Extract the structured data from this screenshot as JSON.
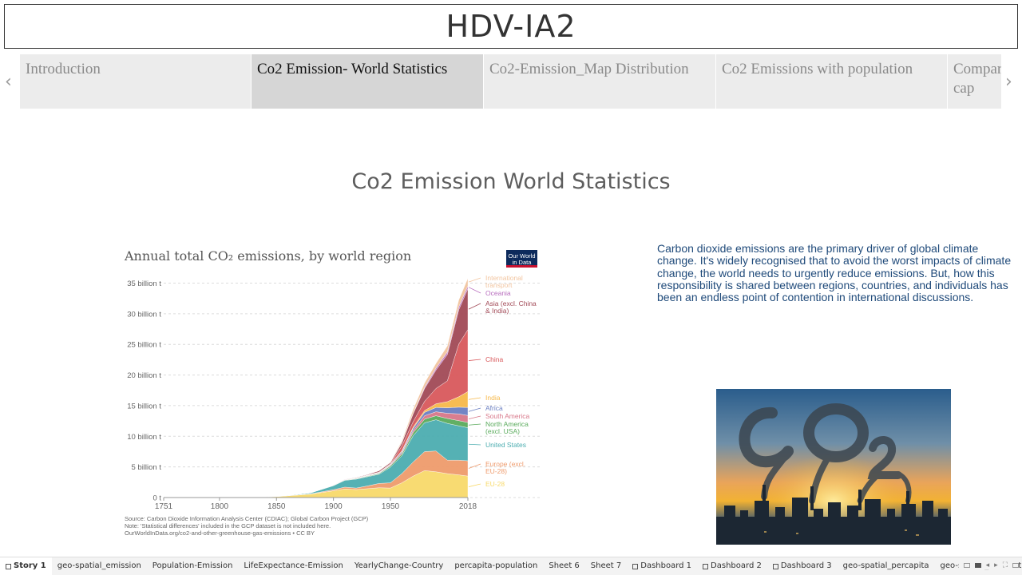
{
  "title": "HDV-IA2",
  "story_points": [
    {
      "label": "Introduction",
      "active": false
    },
    {
      "label": "Co2 Emission- World Statistics",
      "active": true
    },
    {
      "label": "Co2-Emission_Map Distribution",
      "active": false
    },
    {
      "label": "Co2 Emissions with population",
      "active": false
    },
    {
      "label": "Compar per-cap",
      "active": false
    }
  ],
  "nav": {
    "prev_icon": "chevron-left-icon",
    "next_icon": "chevron-right-icon"
  },
  "page_title": "Co2 Emission World Statistics",
  "chart_data": {
    "type": "area",
    "title": "Annual total CO₂ emissions, by world region",
    "logo_text": [
      "Our World",
      "in Data"
    ],
    "x_ticks": [
      "1751",
      "1800",
      "1850",
      "1900",
      "1950",
      "2018"
    ],
    "y_ticks": [
      "0 t",
      "5 billion t",
      "10 billion t",
      "15 billion t",
      "20 billion t",
      "25 billion t",
      "30 billion t",
      "35 billion t"
    ],
    "ylim": [
      0,
      36.5
    ],
    "xlim": [
      1751,
      2018
    ],
    "grid": true,
    "x": [
      1751,
      1800,
      1850,
      1880,
      1900,
      1910,
      1920,
      1930,
      1940,
      1950,
      1960,
      1970,
      1980,
      1990,
      2000,
      2010,
      2018
    ],
    "series": [
      {
        "name": "EU-28",
        "color": "#f8da6b",
        "values": [
          0.01,
          0.03,
          0.15,
          0.55,
          1.1,
          1.4,
          1.3,
          1.45,
          1.6,
          1.55,
          2.4,
          3.5,
          4.4,
          4.2,
          3.9,
          3.7,
          3.5
        ]
      },
      {
        "name": "Europe (excl. EU-28)",
        "color": "#ef9b6c",
        "values": [
          0,
          0,
          0.01,
          0.06,
          0.18,
          0.3,
          0.25,
          0.45,
          0.7,
          0.85,
          1.5,
          2.3,
          3.1,
          3.4,
          2.2,
          2.4,
          2.5
        ]
      },
      {
        "name": "United States",
        "color": "#4cadb0",
        "values": [
          0,
          0,
          0.01,
          0.15,
          0.65,
          1.1,
          1.45,
          1.5,
          1.5,
          2.55,
          2.9,
          4.3,
          4.7,
          5.1,
          6.0,
          5.6,
          5.4
        ]
      },
      {
        "name": "North America (excl. USA)",
        "color": "#5aab5c",
        "values": [
          0,
          0,
          0,
          0.01,
          0.04,
          0.07,
          0.08,
          0.1,
          0.12,
          0.2,
          0.3,
          0.5,
          0.6,
          0.65,
          0.8,
          0.85,
          0.85
        ]
      },
      {
        "name": "South America",
        "color": "#d8788a",
        "values": [
          0,
          0,
          0,
          0,
          0.01,
          0.02,
          0.03,
          0.05,
          0.06,
          0.1,
          0.2,
          0.35,
          0.55,
          0.65,
          0.85,
          1.1,
          1.15
        ]
      },
      {
        "name": "Africa",
        "color": "#6b7fc2",
        "values": [
          0,
          0,
          0,
          0,
          0.01,
          0.02,
          0.04,
          0.05,
          0.07,
          0.1,
          0.2,
          0.35,
          0.55,
          0.7,
          0.9,
          1.1,
          1.3
        ]
      },
      {
        "name": "India",
        "color": "#f7b94a",
        "values": [
          0,
          0,
          0,
          0.01,
          0.02,
          0.03,
          0.04,
          0.05,
          0.06,
          0.07,
          0.12,
          0.2,
          0.3,
          0.6,
          1.0,
          1.7,
          2.6
        ]
      },
      {
        "name": "China",
        "color": "#d9595c",
        "values": [
          0,
          0,
          0,
          0,
          0,
          0.01,
          0.02,
          0.03,
          0.05,
          0.08,
          0.78,
          0.9,
          1.5,
          2.5,
          3.4,
          8.6,
          10.1
        ]
      },
      {
        "name": "Asia (excl. China & India)",
        "color": "#a24a57",
        "values": [
          0,
          0,
          0,
          0.01,
          0.03,
          0.05,
          0.08,
          0.1,
          0.2,
          0.2,
          0.5,
          1.3,
          2.1,
          3.0,
          4.3,
          5.6,
          6.7
        ]
      },
      {
        "name": "Oceania",
        "color": "#b96fbf",
        "values": [
          0,
          0,
          0,
          0,
          0.01,
          0.02,
          0.02,
          0.02,
          0.03,
          0.04,
          0.07,
          0.1,
          0.2,
          0.3,
          0.4,
          0.45,
          0.45
        ]
      },
      {
        "name": "International transport",
        "color": "#f2c5a0",
        "values": [
          0,
          0,
          0,
          0,
          0,
          0,
          0,
          0,
          0.02,
          0.06,
          0.25,
          0.6,
          0.7,
          0.8,
          1.0,
          1.15,
          1.25
        ]
      }
    ],
    "legend_labels": [
      {
        "series": "International transport",
        "lines": [
          "International",
          "transport"
        ]
      },
      {
        "series": "Oceania",
        "lines": [
          "Oceania"
        ]
      },
      {
        "series": "Asia (excl. China & India)",
        "lines": [
          "Asia (excl. China",
          "& India)"
        ]
      },
      {
        "series": "China",
        "lines": [
          "China"
        ]
      },
      {
        "series": "India",
        "lines": [
          "India"
        ]
      },
      {
        "series": "Africa",
        "lines": [
          "Africa"
        ]
      },
      {
        "series": "South America",
        "lines": [
          "South America"
        ]
      },
      {
        "series": "North America (excl. USA)",
        "lines": [
          "North America",
          "(excl. USA)"
        ]
      },
      {
        "series": "United States",
        "lines": [
          "United States"
        ]
      },
      {
        "series": "Europe (excl. EU-28)",
        "lines": [
          "Europe (excl.",
          "EU-28)"
        ]
      },
      {
        "series": "EU-28",
        "lines": [
          "EU-28"
        ]
      }
    ],
    "source_lines": [
      "Source: Carbon Dioxide Information Analysis Center (CDIAC); Global Carbon Project (GCP)",
      "Note: 'Statistical differences' included in the GCP dataset is not included here.",
      "OurWorldInData.org/co2-and-other-greenhouse-gas-emissions • CC BY"
    ]
  },
  "description": "Carbon dioxide emissions are the primary driver of global climate change. It's widely recognised that to avoid the worst impacts of climate change, the world needs to urgently reduce emissions. But, how this responsibility is shared between regions, countries, and individuals has been an endless point of contention in international discussions.",
  "image_text": "CO2",
  "sheet_tabs": [
    {
      "label": "Story 1",
      "icon": "story-icon",
      "active": true
    },
    {
      "label": "geo-spatial_emission",
      "icon": null,
      "active": false
    },
    {
      "label": "Population-Emission",
      "icon": null,
      "active": false
    },
    {
      "label": "LifeExpectance-Emission",
      "icon": null,
      "active": false
    },
    {
      "label": "YearlyChange-Country",
      "icon": null,
      "active": false
    },
    {
      "label": "percapita-population",
      "icon": null,
      "active": false
    },
    {
      "label": "Sheet 6",
      "icon": null,
      "active": false
    },
    {
      "label": "Sheet 7",
      "icon": null,
      "active": false
    },
    {
      "label": "Dashboard 1",
      "icon": "dashboard-icon",
      "active": false
    },
    {
      "label": "Dashboard 2",
      "icon": "dashboard-icon",
      "active": false
    },
    {
      "label": "Dashboard 3",
      "icon": "dashboard-icon",
      "active": false
    },
    {
      "label": "geo-spatial_percapita",
      "icon": null,
      "active": false
    },
    {
      "label": "geo-spatial_percapit",
      "icon": null,
      "active": false
    }
  ],
  "bottom_controls": [
    "grid-view-icon",
    "list-view-icon",
    "first-sheet-icon",
    "prev-sheet-icon",
    "next-sheet-icon",
    "fullscreen-icon"
  ],
  "colors": {
    "active_tab": "#d6d6d6",
    "inactive_tab": "#ececec",
    "description_text": "#1f4a7a"
  }
}
